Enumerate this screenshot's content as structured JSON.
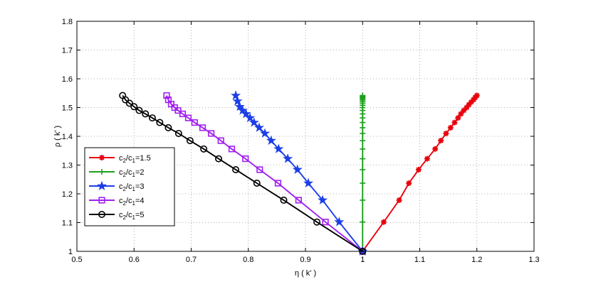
{
  "chart_data": {
    "type": "line",
    "xlabel": "η ( k' )",
    "ylabel": "ρ ( k' )",
    "xlim": [
      0.5,
      1.3
    ],
    "ylim": [
      1.0,
      1.8
    ],
    "xticks": [
      0.5,
      0.6,
      0.7,
      0.8,
      0.9,
      1.0,
      1.1,
      1.2,
      1.3
    ],
    "yticks": [
      1.0,
      1.1,
      1.2,
      1.3,
      1.4,
      1.5,
      1.6,
      1.7,
      1.8
    ],
    "xtick_labels": [
      "0.5",
      "0.6",
      "0.7",
      "0.8",
      "0.9",
      "1",
      "1.1",
      "1.2",
      "1.3"
    ],
    "ytick_labels": [
      "1",
      "1.1",
      "1.2",
      "1.3",
      "1.4",
      "1.5",
      "1.6",
      "1.7",
      "1.8"
    ],
    "grid": true,
    "legend_position": "bottom-left",
    "series": [
      {
        "name": "c2/c1=1.5",
        "legend": {
          "base": "c",
          "s1": "2",
          "mid": "/c",
          "s2": "1",
          "suffix": "=1.5"
        },
        "color": "#e8000b",
        "marker": "asterisk",
        "x": [
          1.0,
          1.037,
          1.064,
          1.081,
          1.098,
          1.113,
          1.127,
          1.137,
          1.146,
          1.154,
          1.161,
          1.167,
          1.172,
          1.177,
          1.182,
          1.186,
          1.19,
          1.194,
          1.197,
          1.2
        ],
        "y": [
          1.0,
          1.102,
          1.178,
          1.237,
          1.284,
          1.322,
          1.356,
          1.385,
          1.41,
          1.43,
          1.448,
          1.464,
          1.478,
          1.49,
          1.5,
          1.51,
          1.519,
          1.527,
          1.535,
          1.542
        ]
      },
      {
        "name": "c2/c1=2",
        "legend": {
          "base": "c",
          "s1": "2",
          "mid": "/c",
          "s2": "1",
          "suffix": "=2"
        },
        "color": "#1ca01c",
        "marker": "plus",
        "x": [
          1.0,
          1.0,
          1.0,
          1.0,
          1.0,
          1.0,
          1.0,
          1.0,
          1.0,
          1.0,
          1.0,
          1.0,
          1.0,
          1.0,
          1.0,
          1.0,
          1.0,
          1.0,
          1.0,
          1.0,
          1.0,
          1.0,
          1.0,
          1.0
        ],
        "y": [
          1.0,
          1.102,
          1.178,
          1.237,
          1.284,
          1.322,
          1.356,
          1.385,
          1.41,
          1.43,
          1.448,
          1.464,
          1.478,
          1.49,
          1.5,
          1.508,
          1.515,
          1.521,
          1.526,
          1.53,
          1.534,
          1.537,
          1.54,
          1.542
        ]
      },
      {
        "name": "c2/c1=3",
        "legend": {
          "base": "c",
          "s1": "2",
          "mid": "/c",
          "s2": "1",
          "suffix": "=3"
        },
        "color": "#1c3ee8",
        "marker": "star",
        "x": [
          1.0,
          0.959,
          0.93,
          0.905,
          0.886,
          0.869,
          0.853,
          0.84,
          0.829,
          0.819,
          0.81,
          0.803,
          0.796,
          0.79,
          0.785,
          0.781,
          0.778
        ],
        "y": [
          1.0,
          1.102,
          1.178,
          1.237,
          1.284,
          1.322,
          1.356,
          1.385,
          1.41,
          1.43,
          1.448,
          1.464,
          1.478,
          1.49,
          1.503,
          1.522,
          1.542
        ]
      },
      {
        "name": "c2/c1=4",
        "legend": {
          "base": "c",
          "s1": "2",
          "mid": "/c",
          "s2": "1",
          "suffix": "=4"
        },
        "color": "#a020f0",
        "marker": "square",
        "x": [
          1.0,
          0.935,
          0.888,
          0.852,
          0.82,
          0.795,
          0.771,
          0.752,
          0.735,
          0.72,
          0.706,
          0.695,
          0.685,
          0.677,
          0.671,
          0.665,
          0.66,
          0.657
        ],
        "y": [
          1.0,
          1.102,
          1.178,
          1.237,
          1.284,
          1.322,
          1.356,
          1.385,
          1.41,
          1.43,
          1.448,
          1.464,
          1.478,
          1.49,
          1.5,
          1.512,
          1.527,
          1.542
        ]
      },
      {
        "name": "c2/c1=5",
        "legend": {
          "base": "c",
          "s1": "2",
          "mid": "/c",
          "s2": "1",
          "suffix": "=5"
        },
        "color": "#000000",
        "marker": "circle",
        "x": [
          1.0,
          0.92,
          0.862,
          0.815,
          0.778,
          0.748,
          0.722,
          0.698,
          0.678,
          0.66,
          0.645,
          0.632,
          0.62,
          0.609,
          0.6,
          0.592,
          0.585,
          0.58
        ],
        "y": [
          1.0,
          1.102,
          1.178,
          1.237,
          1.284,
          1.322,
          1.356,
          1.385,
          1.41,
          1.43,
          1.448,
          1.464,
          1.478,
          1.49,
          1.503,
          1.515,
          1.527,
          1.542
        ]
      }
    ]
  }
}
